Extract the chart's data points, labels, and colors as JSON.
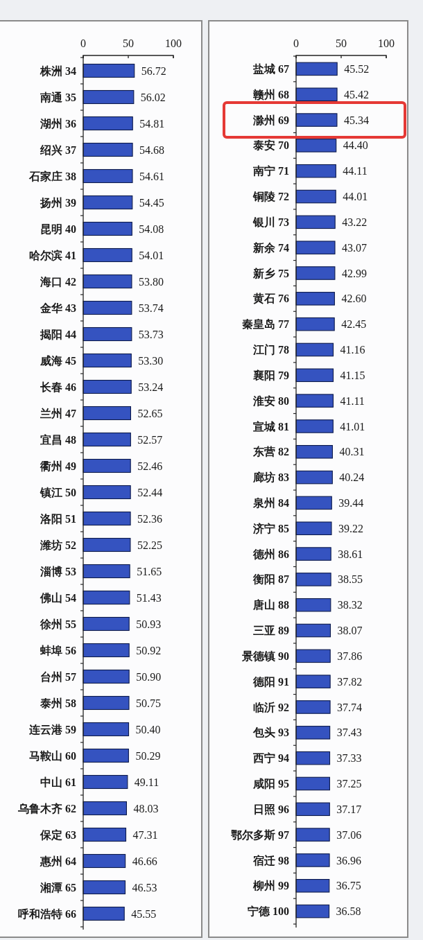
{
  "chart_data": [
    {
      "type": "bar",
      "orientation": "horizontal",
      "categories": [
        "株洲 34",
        "南通 35",
        "湖州 36",
        "绍兴 37",
        "石家庄 38",
        "扬州 39",
        "昆明 40",
        "哈尔滨 41",
        "海口 42",
        "金华 43",
        "揭阳 44",
        "威海 45",
        "长春 46",
        "兰州 47",
        "宜昌 48",
        "衢州 49",
        "镇江 50",
        "洛阳 51",
        "潍坊 52",
        "淄博 53",
        "佛山 54",
        "徐州 55",
        "蚌埠 56",
        "台州 57",
        "泰州 58",
        "连云港 59",
        "马鞍山 60",
        "中山 61",
        "乌鲁木齐 62",
        "保定 63",
        "惠州 64",
        "湘潭 65",
        "呼和浩特 66"
      ],
      "values": [
        56.72,
        56.02,
        54.81,
        54.68,
        54.61,
        54.45,
        54.08,
        54.01,
        53.8,
        53.74,
        53.73,
        53.3,
        53.24,
        52.65,
        52.57,
        52.46,
        52.44,
        52.36,
        52.25,
        51.65,
        51.43,
        50.93,
        50.92,
        50.9,
        50.75,
        50.4,
        50.29,
        49.11,
        48.03,
        47.31,
        46.66,
        46.53,
        45.55
      ],
      "value_labels": [
        "56.72",
        "56.02",
        "54.81",
        "54.68",
        "54.61",
        "54.45",
        "54.08",
        "54.01",
        "53.80",
        "53.74",
        "53.73",
        "53.30",
        "53.24",
        "52.65",
        "52.57",
        "52.46",
        "52.44",
        "52.36",
        "52.25",
        "51.65",
        "51.43",
        "50.93",
        "50.92",
        "50.90",
        "50.75",
        "50.40",
        "50.29",
        "49.11",
        "48.03",
        "47.31",
        "46.66",
        "46.53",
        "45.55"
      ],
      "color": "#3553c0",
      "xlim": [
        0,
        100
      ],
      "xticks": [
        0,
        50,
        100
      ]
    },
    {
      "type": "bar",
      "orientation": "horizontal",
      "categories": [
        "盐城 67",
        "赣州 68",
        "滁州 69",
        "泰安 70",
        "南宁 71",
        "铜陵 72",
        "银川 73",
        "新余 74",
        "新乡 75",
        "黄石 76",
        "秦皇岛 77",
        "江门 78",
        "襄阳 79",
        "淮安 80",
        "宣城 81",
        "东营 82",
        "廊坊 83",
        "泉州 84",
        "济宁 85",
        "德州 86",
        "衡阳 87",
        "唐山 88",
        "三亚 89",
        "景德镇 90",
        "德阳 91",
        "临沂 92",
        "包头 93",
        "西宁 94",
        "咸阳 95",
        "日照 96",
        "鄂尔多斯 97",
        "宿迁 98",
        "柳州 99",
        "宁德 100"
      ],
      "values": [
        45.52,
        45.42,
        45.34,
        44.4,
        44.11,
        44.01,
        43.22,
        43.07,
        42.99,
        42.6,
        42.45,
        41.16,
        41.15,
        41.11,
        41.01,
        40.31,
        40.24,
        39.44,
        39.22,
        38.61,
        38.55,
        38.32,
        38.07,
        37.86,
        37.82,
        37.74,
        37.43,
        37.33,
        37.25,
        37.17,
        37.06,
        36.96,
        36.75,
        36.58
      ],
      "value_labels": [
        "45.52",
        "45.42",
        "45.34",
        "44.40",
        "44.11",
        "44.01",
        "43.22",
        "43.07",
        "42.99",
        "42.60",
        "42.45",
        "41.16",
        "41.15",
        "41.11",
        "41.01",
        "40.31",
        "40.24",
        "39.44",
        "39.22",
        "38.61",
        "38.55",
        "38.32",
        "38.07",
        "37.86",
        "37.82",
        "37.74",
        "37.43",
        "37.33",
        "37.25",
        "37.17",
        "37.06",
        "36.96",
        "36.75",
        "36.58"
      ],
      "color": "#3553c0",
      "xlim": [
        0,
        100
      ],
      "xticks": [
        0,
        50,
        100
      ]
    }
  ]
}
